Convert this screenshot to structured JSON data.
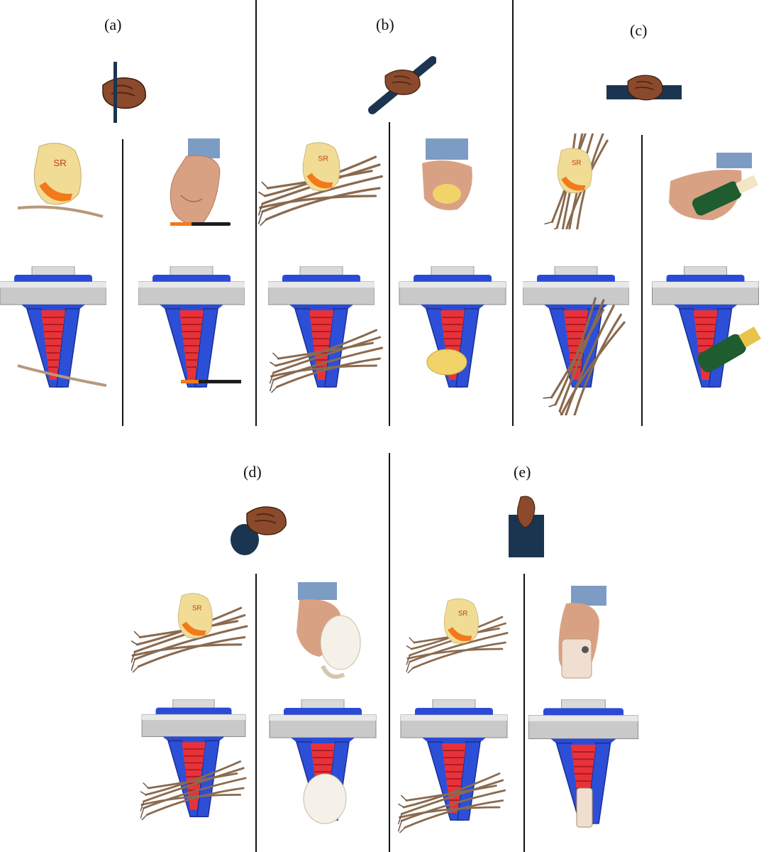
{
  "figure": {
    "panels": [
      {
        "label": "(a)",
        "grasp": "pencil-precision grasp"
      },
      {
        "label": "(b)",
        "grasp": "diagonal power grasp"
      },
      {
        "label": "(c)",
        "grasp": "horizontal power grasp"
      },
      {
        "label": "(d)",
        "grasp": "large-diameter wrap grasp"
      },
      {
        "label": "(e)",
        "grasp": "flat-object pinch grasp"
      }
    ]
  }
}
